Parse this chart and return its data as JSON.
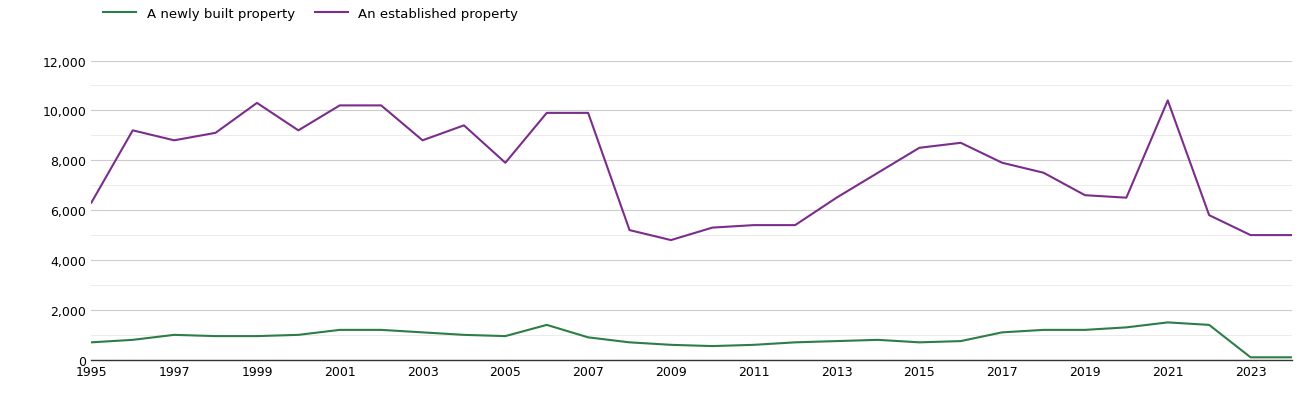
{
  "years": [
    1995,
    1996,
    1997,
    1998,
    1999,
    2000,
    2001,
    2002,
    2003,
    2004,
    2005,
    2006,
    2007,
    2008,
    2009,
    2010,
    2011,
    2012,
    2013,
    2014,
    2015,
    2016,
    2017,
    2018,
    2019,
    2020,
    2021,
    2022,
    2023,
    2024
  ],
  "new_homes": [
    700,
    800,
    1000,
    950,
    950,
    1000,
    1200,
    1200,
    1100,
    1000,
    950,
    1400,
    900,
    700,
    600,
    550,
    600,
    700,
    750,
    800,
    700,
    750,
    1100,
    1200,
    1200,
    1300,
    1500,
    1400,
    100,
    100
  ],
  "established_homes": [
    6300,
    9200,
    8800,
    9100,
    10300,
    9200,
    10200,
    10200,
    8800,
    9400,
    7900,
    9900,
    9900,
    5200,
    4800,
    5300,
    5400,
    5400,
    6500,
    7500,
    8500,
    8700,
    7900,
    7500,
    6600,
    6500,
    10400,
    5800,
    5000,
    5000
  ],
  "new_color": "#2d7d46",
  "established_color": "#7b2d8b",
  "new_label": "A newly built property",
  "established_label": "An established property",
  "ylim": [
    0,
    12000
  ],
  "yticks_major": [
    0,
    2000,
    4000,
    6000,
    8000,
    10000,
    12000
  ],
  "yticks_minor": [
    1000,
    3000,
    5000,
    7000,
    9000,
    11000
  ],
  "background_color": "#ffffff",
  "grid_color_major": "#cccccc",
  "grid_color_minor": "#e8e8e8",
  "line_width": 1.5
}
